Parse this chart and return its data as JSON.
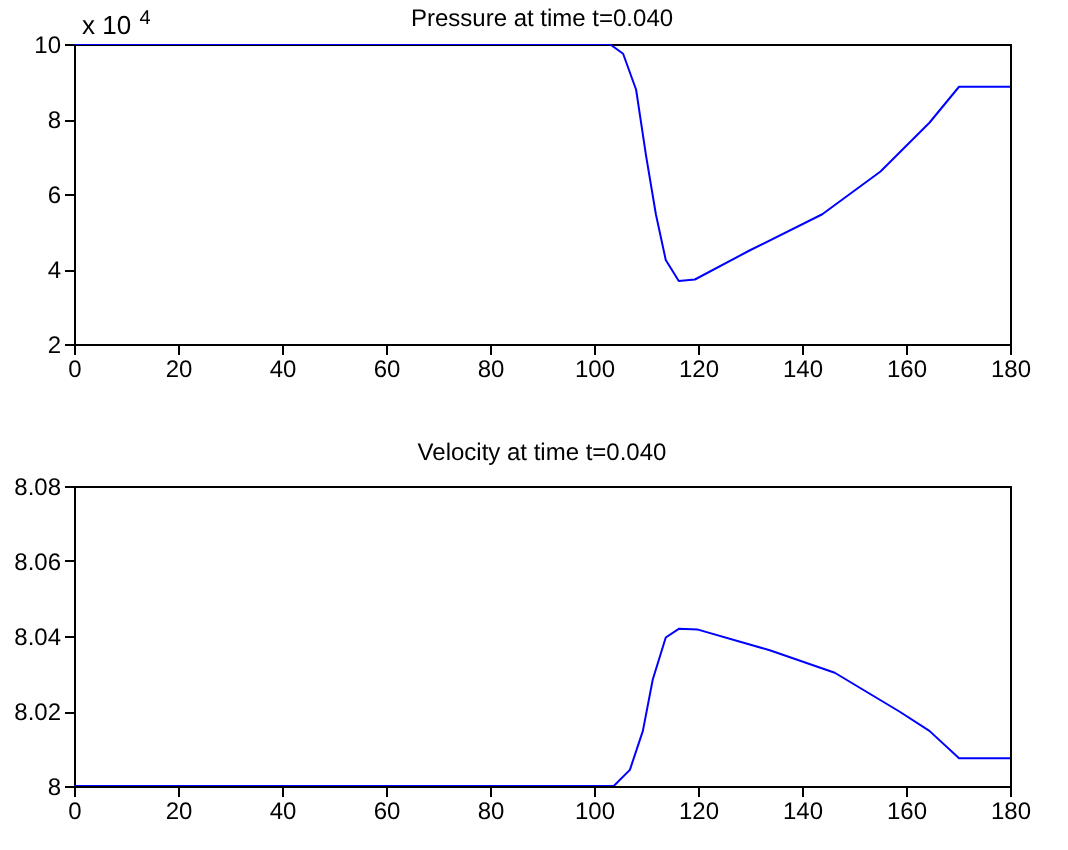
{
  "chart_data": [
    {
      "type": "line",
      "title": "Pressure at time t=0.040",
      "annotations": [
        "x 10$^{4}$"
      ],
      "x": [
        0,
        103,
        105.6,
        108.1,
        110,
        111.9,
        113.8,
        116.3,
        119.4,
        130,
        143.9,
        155.1,
        164.5,
        170.2,
        180
      ],
      "series": [
        {
          "color": "#0000ff",
          "values": [
            10,
            10,
            9.74,
            8.78,
            7.03,
            5.46,
            4.24,
            3.68,
            3.72,
            4.5,
            5.46,
            6.6,
            7.9,
            8.86,
            8.86
          ]
        }
      ],
      "xlim": [
        0,
        180
      ],
      "xticks": [
        0,
        20,
        40,
        60,
        80,
        100,
        120,
        140,
        160,
        180
      ],
      "ylim": [
        2,
        10
      ],
      "yticks": [
        2,
        4,
        6,
        8,
        10
      ],
      "grid": false
    },
    {
      "type": "line",
      "title": "Velocity at time t=0.040",
      "x": [
        0,
        103.8,
        106.9,
        109.4,
        111.3,
        113.8,
        116.3,
        120,
        133.8,
        146.3,
        158.8,
        164.5,
        170.2,
        180
      ],
      "series": [
        {
          "color": "#0000ff",
          "values": [
            8,
            8,
            8.0043,
            8.0147,
            8.0284,
            8.0396,
            8.0419,
            8.0417,
            8.0362,
            8.0302,
            8.0198,
            8.0147,
            8.0074,
            8.0074
          ]
        }
      ],
      "xlim": [
        0,
        180
      ],
      "xticks": [
        0,
        20,
        40,
        60,
        80,
        100,
        120,
        140,
        160,
        180
      ],
      "ylim": [
        8,
        8.08
      ],
      "yticks": [
        8,
        8.02,
        8.04,
        8.06,
        8.08
      ],
      "grid": false
    }
  ]
}
